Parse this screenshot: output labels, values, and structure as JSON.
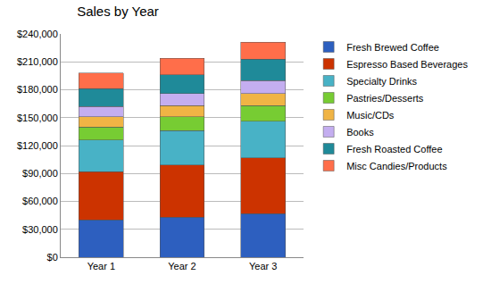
{
  "chart_data": {
    "type": "bar",
    "title": "Sales by Year",
    "stacked": true,
    "grid": true,
    "legend": "right",
    "categories": [
      "Year 1",
      "Year 2",
      "Year 3"
    ],
    "series": [
      {
        "name": "Fresh Brewed Coffee",
        "color": "#2d5fbf",
        "values": [
          40000,
          43000,
          47000
        ]
      },
      {
        "name": "Espresso Based Beverages",
        "color": "#cc3300",
        "values": [
          52000,
          56000,
          60000
        ]
      },
      {
        "name": "Specialty Drinks",
        "color": "#48b2c6",
        "values": [
          34000,
          37000,
          39000
        ]
      },
      {
        "name": "Pastries/Desserts",
        "color": "#77cc33",
        "values": [
          14000,
          15000,
          17000
        ]
      },
      {
        "name": "Music/CDs",
        "color": "#f0b445",
        "values": [
          11000,
          12000,
          13000
        ]
      },
      {
        "name": "Books",
        "color": "#c4aef0",
        "values": [
          11000,
          13000,
          14000
        ]
      },
      {
        "name": "Fresh Roasted Coffee",
        "color": "#1f8a99",
        "values": [
          19000,
          20000,
          23000
        ]
      },
      {
        "name": "Misc Candies/Products",
        "color": "#ff6e4a",
        "values": [
          17000,
          18000,
          18000
        ]
      }
    ],
    "ylim": [
      0,
      240000
    ],
    "yticks": [
      {
        "value": 0,
        "label": "$0"
      },
      {
        "value": 30000,
        "label": "$30,000"
      },
      {
        "value": 60000,
        "label": "$60,000"
      },
      {
        "value": 90000,
        "label": "$90,000"
      },
      {
        "value": 120000,
        "label": "$120,000"
      },
      {
        "value": 150000,
        "label": "$150,000"
      },
      {
        "value": 180000,
        "label": "$180,000"
      },
      {
        "value": 210000,
        "label": "$210,000"
      },
      {
        "value": 240000,
        "label": "$240,000"
      }
    ]
  }
}
